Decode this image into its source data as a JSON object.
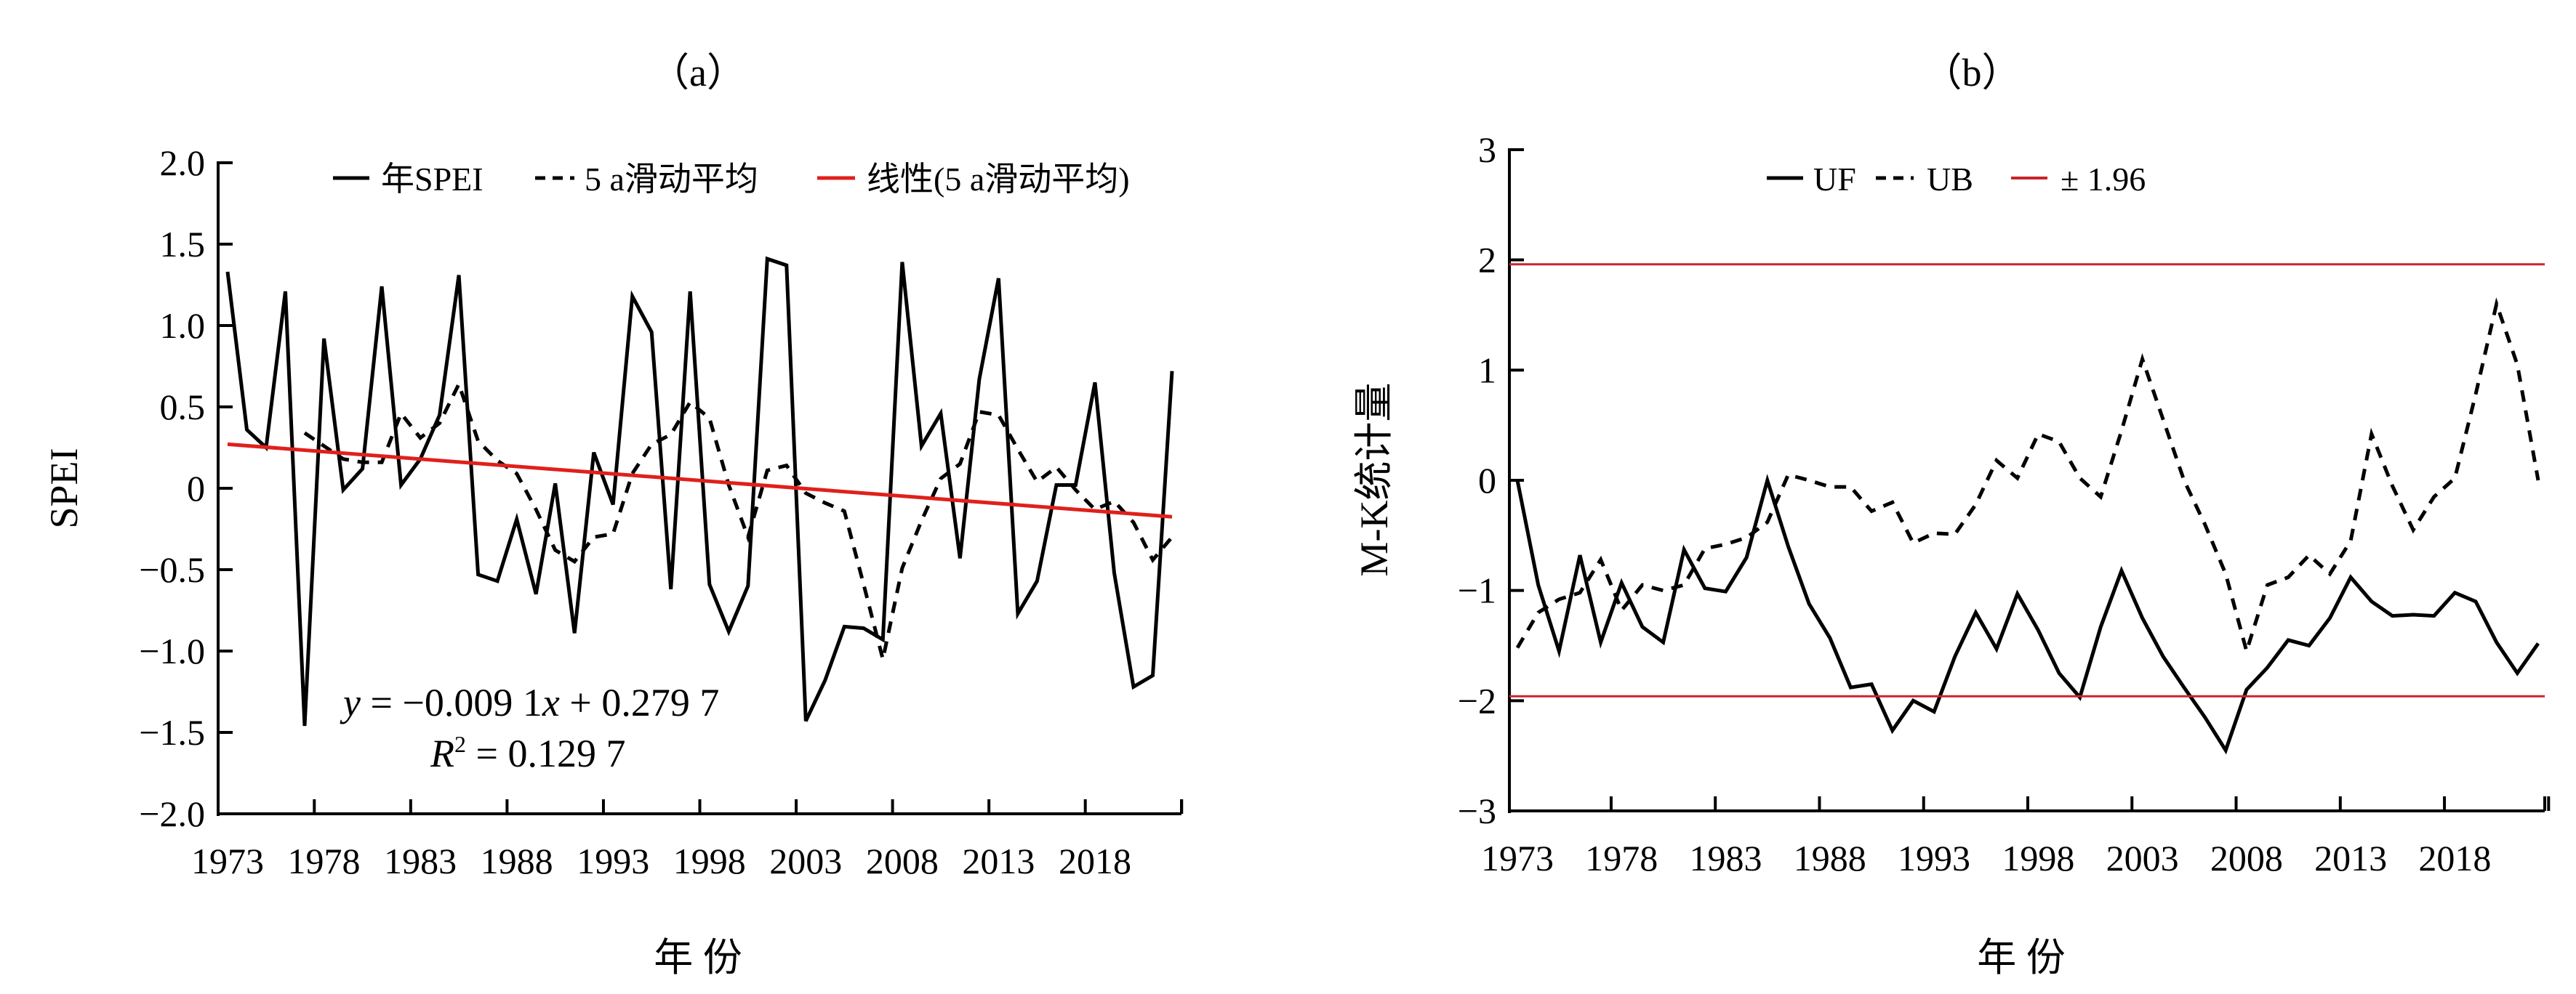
{
  "chart_data": [
    {
      "type": "line",
      "title": "（a）",
      "xlabel": "年 份",
      "ylabel": "SPEI",
      "ylim": [
        -2.0,
        2.0
      ],
      "yticks": [
        "2.0",
        "1.5",
        "1.0",
        "0.5",
        "0",
        "-0.5",
        "-1.0",
        "-1.5",
        "-2.0"
      ],
      "xtick_labels": [
        "1973",
        "1978",
        "1983",
        "1988",
        "1993",
        "1998",
        "2003",
        "2008",
        "2013",
        "2018"
      ],
      "x": [
        1973,
        1974,
        1975,
        1976,
        1977,
        1978,
        1979,
        1980,
        1981,
        1982,
        1983,
        1984,
        1985,
        1986,
        1987,
        1988,
        1989,
        1990,
        1991,
        1992,
        1993,
        1994,
        1995,
        1996,
        1997,
        1998,
        1999,
        2000,
        2001,
        2002,
        2003,
        2004,
        2005,
        2006,
        2007,
        2008,
        2009,
        2010,
        2011,
        2012,
        2013,
        2014,
        2015,
        2016,
        2017,
        2018,
        2019,
        2020,
        2021,
        2022
      ],
      "series": [
        {
          "name": "年SPEI",
          "style": "solid",
          "color": "#000000",
          "values": [
            1.33,
            0.36,
            0.25,
            1.21,
            -1.46,
            0.92,
            -0.01,
            0.12,
            1.24,
            0.02,
            0.18,
            0.45,
            1.31,
            -0.53,
            -0.57,
            -0.19,
            -0.65,
            0.03,
            -0.89,
            0.22,
            -0.1,
            1.18,
            0.96,
            -0.62,
            1.21,
            -0.59,
            -0.88,
            -0.6,
            1.41,
            1.37,
            -1.43,
            -1.18,
            -0.85,
            -0.86,
            -0.93,
            1.39,
            0.26,
            0.46,
            -0.43,
            0.67,
            1.29,
            -0.77,
            -0.57,
            0.02,
            0.02,
            0.65,
            -0.52,
            -1.22,
            -1.15,
            0.72
          ]
        },
        {
          "name": "5 a滑动平均",
          "style": "dashed",
          "color": "#000000",
          "values": [
            null,
            null,
            null,
            null,
            0.34,
            0.26,
            0.18,
            0.16,
            0.16,
            0.46,
            0.31,
            0.4,
            0.64,
            0.29,
            0.17,
            0.09,
            -0.13,
            -0.38,
            -0.45,
            -0.3,
            -0.28,
            0.09,
            0.27,
            0.33,
            0.53,
            0.43,
            0.02,
            -0.3,
            0.11,
            0.14,
            -0.03,
            -0.09,
            -0.14,
            -0.59,
            -1.05,
            -0.49,
            -0.2,
            0.06,
            0.15,
            0.47,
            0.45,
            0.24,
            0.04,
            0.13,
            -0.01,
            -0.13,
            -0.08,
            -0.21,
            -0.44,
            -0.3
          ]
        },
        {
          "name": "线性(5 a滑动平均)",
          "style": "solid",
          "color": "#e0201b",
          "slope": -0.0091,
          "intercept": 0.2797
        }
      ],
      "annotations": {
        "equation_y": "y",
        "equation_rest": " = −0.009 1",
        "equation_x": "x",
        "equation_tail": " + 0.279 7",
        "r2_r": "R",
        "r2_sup": "2",
        "r2_rest": " = 0.129 7"
      },
      "legend": "top"
    },
    {
      "type": "line",
      "title": "（b）",
      "xlabel": "年 份",
      "ylabel": "M-K统计量",
      "ylim": [
        -3,
        3
      ],
      "yticks": [
        "3",
        "2",
        "1",
        "0",
        "-1",
        "-2",
        "-3"
      ],
      "xtick_labels": [
        "1973",
        "1978",
        "1983",
        "1988",
        "1993",
        "1998",
        "2003",
        "2008",
        "2013",
        "2018"
      ],
      "x": [
        1973,
        1974,
        1975,
        1976,
        1977,
        1978,
        1979,
        1980,
        1981,
        1982,
        1983,
        1984,
        1985,
        1986,
        1987,
        1988,
        1989,
        1990,
        1991,
        1992,
        1993,
        1994,
        1995,
        1996,
        1997,
        1998,
        1999,
        2000,
        2001,
        2002,
        2003,
        2004,
        2005,
        2006,
        2007,
        2008,
        2009,
        2010,
        2011,
        2012,
        2013,
        2014,
        2015,
        2016,
        2017,
        2018,
        2019,
        2020,
        2021,
        2022
      ],
      "series": [
        {
          "name": "UF",
          "style": "solid",
          "color": "#000000",
          "values": [
            0,
            -0.95,
            -1.55,
            -0.68,
            -1.47,
            -0.93,
            -1.33,
            -1.47,
            -0.63,
            -0.98,
            -1.01,
            -0.7,
            0.0,
            -0.6,
            -1.12,
            -1.43,
            -1.88,
            -1.85,
            -2.27,
            -2.0,
            -2.1,
            -1.6,
            -1.2,
            -1.53,
            -1.03,
            -1.36,
            -1.75,
            -1.97,
            -1.33,
            -0.82,
            -1.25,
            -1.6,
            -1.88,
            -2.15,
            -2.45,
            -1.9,
            -1.7,
            -1.45,
            -1.5,
            -1.25,
            -0.88,
            -1.1,
            -1.23,
            -1.22,
            -1.23,
            -1.02,
            -1.1,
            -1.47,
            -1.75,
            -1.48
          ]
        },
        {
          "name": "UB",
          "style": "dashed",
          "color": "#000000",
          "values": [
            -1.52,
            -1.2,
            -1.08,
            -1.02,
            -0.72,
            -1.18,
            -0.95,
            -1.0,
            -0.95,
            -0.62,
            -0.58,
            -0.52,
            -0.38,
            0.05,
            0.0,
            -0.06,
            -0.06,
            -0.28,
            -0.2,
            -0.57,
            -0.48,
            -0.49,
            -0.22,
            0.18,
            0.02,
            0.42,
            0.35,
            0.02,
            -0.15,
            0.45,
            1.1,
            0.55,
            0.0,
            -0.4,
            -0.85,
            -1.55,
            -0.95,
            -0.88,
            -0.68,
            -0.85,
            -0.55,
            0.42,
            -0.05,
            -0.45,
            -0.15,
            0.02,
            0.78,
            1.6,
            1.05,
            0.0
          ]
        },
        {
          "name": "± 1.96",
          "style": "solid",
          "color": "#c8252b",
          "levels": [
            1.96,
            -1.96
          ]
        }
      ],
      "legend": "top"
    }
  ]
}
